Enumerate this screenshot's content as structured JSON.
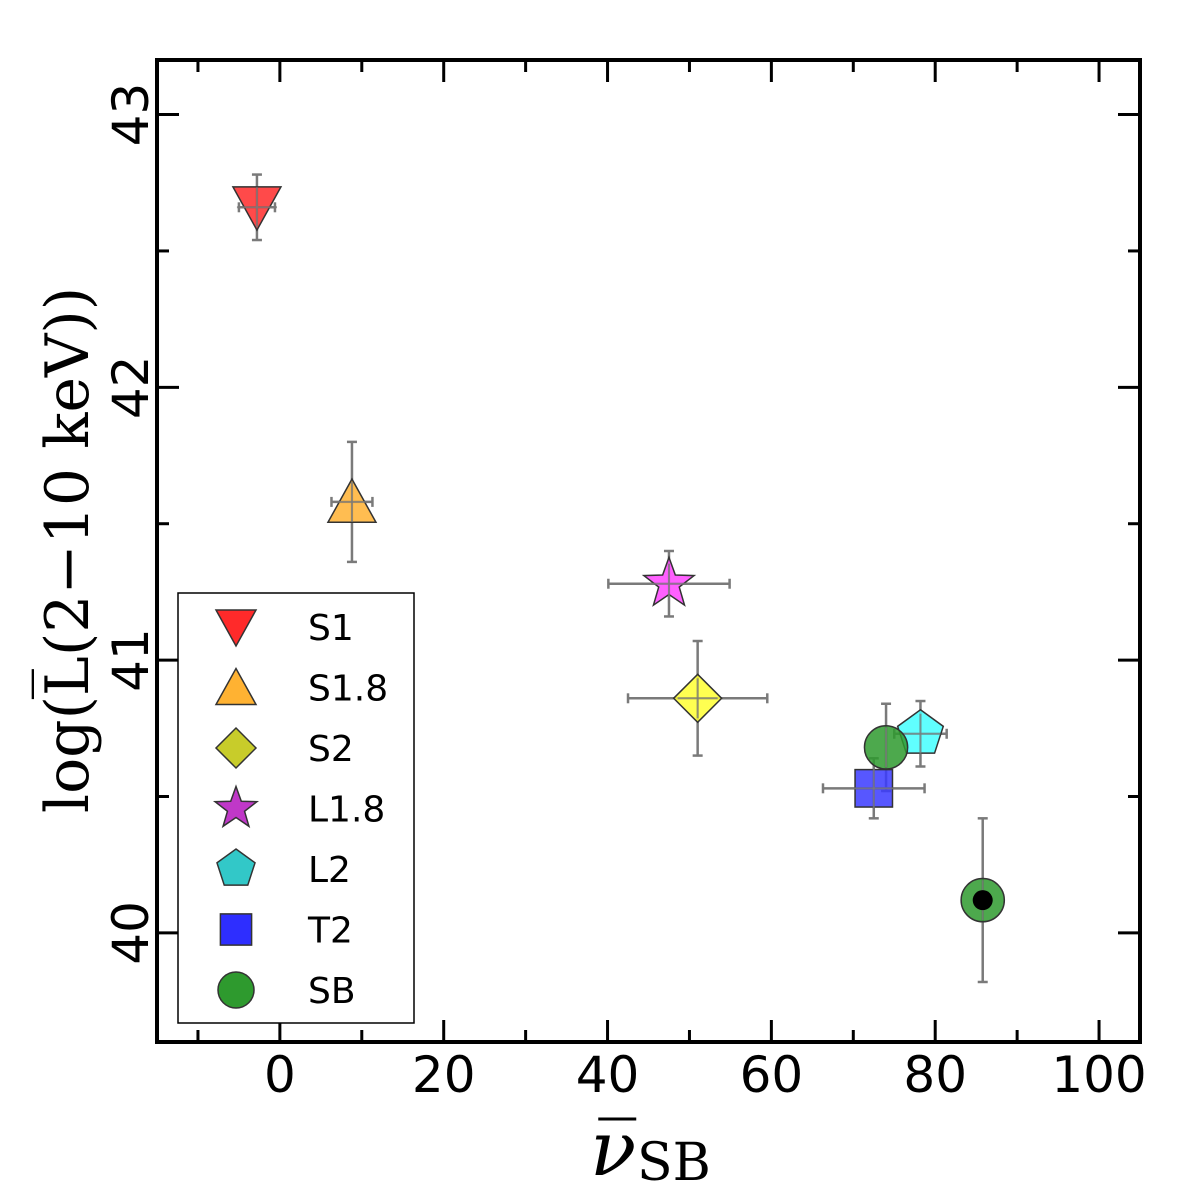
{
  "chart_data": {
    "type": "scatter",
    "title": "",
    "xlabel": "ν̅",
    "xlabel_sub": "SB",
    "ylabel": "log(L̅(2−10 keV))",
    "xlim": [
      -15,
      105
    ],
    "ylim": [
      39.6,
      43.2
    ],
    "xticks": [
      0,
      20,
      40,
      60,
      80,
      100
    ],
    "xtick_labels": [
      "0",
      "20",
      "40",
      "60",
      "80",
      "100"
    ],
    "yticks": [
      40,
      41,
      42,
      43
    ],
    "ytick_labels": [
      "40",
      "41",
      "42",
      "43"
    ],
    "grid": false,
    "legend_position": "lower-left",
    "series": [
      {
        "name": "S1",
        "marker": "triangle-down",
        "color": "#ff2a2a",
        "legend_color": "#ff2a2a",
        "x": -2.8,
        "y": 42.66,
        "xerr": 2.2,
        "yerr": 0.12
      },
      {
        "name": "S1.8",
        "marker": "triangle-up",
        "color": "#ffb232",
        "legend_color": "#ffb232",
        "x": 8.8,
        "y": 41.58,
        "xerr": 2.5,
        "yerr": 0.22
      },
      {
        "name": "S2",
        "marker": "diamond",
        "color": "#ffff33",
        "legend_color": "#c8cc2a",
        "x": 51.0,
        "y": 40.86,
        "xerr": 8.5,
        "yerr": 0.21
      },
      {
        "name": "L1.8",
        "marker": "star",
        "color": "#ff44ff",
        "legend_color": "#c038c8",
        "x": 47.5,
        "y": 41.28,
        "xerr": 7.4,
        "yerr": 0.12
      },
      {
        "name": "L2",
        "marker": "pentagon",
        "color": "#44ffff",
        "legend_color": "#32c8c8",
        "x": 78.2,
        "y": 40.73,
        "xerr": 3.2,
        "yerr": 0.12
      },
      {
        "name": "T2",
        "marker": "square",
        "color": "#3a3aff",
        "legend_color": "#2e2eff",
        "x": 72.5,
        "y": 40.53,
        "xerr": 6.2,
        "yerr": 0.11
      },
      {
        "name": "SB",
        "marker": "circle",
        "color": "#2e9a2e",
        "legend_color": "#2e9a2e",
        "x": 74.0,
        "y": 40.68,
        "xerr": 0,
        "yerr": 0.16
      }
    ],
    "extra_points": [
      {
        "name": "SB (black center)",
        "marker": "circle-dot",
        "color": "#2e9a2e",
        "x": 85.8,
        "y": 40.12,
        "xerr": 0,
        "yerr": 0.3
      }
    ]
  }
}
